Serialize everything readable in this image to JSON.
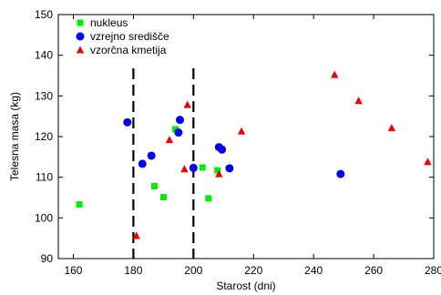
{
  "chart_data": {
    "type": "scatter",
    "title": "",
    "xlabel": "Starost (dni)",
    "ylabel": "Telesna masa (kg)",
    "xlim": [
      155,
      280
    ],
    "ylim": [
      90,
      150
    ],
    "x_ticks": [
      160,
      180,
      200,
      220,
      240,
      260,
      280
    ],
    "y_ticks": [
      90,
      100,
      110,
      120,
      130,
      140,
      150
    ],
    "grid": false,
    "legend_position": "top-left",
    "vertical_reference_lines": [
      180,
      200
    ],
    "series": [
      {
        "name": "nukleus",
        "marker": "square",
        "color": "#00ee00",
        "points": [
          [
            162,
            103.3
          ],
          [
            187,
            107.8
          ],
          [
            190,
            105.1
          ],
          [
            194,
            121.8
          ],
          [
            203,
            112.4
          ],
          [
            205,
            104.8
          ],
          [
            208,
            111.7
          ]
        ]
      },
      {
        "name": "vzrejno središče",
        "marker": "circle",
        "color": "#0000ee",
        "points": [
          [
            178,
            123.5
          ],
          [
            183,
            113.3
          ],
          [
            186,
            115.3
          ],
          [
            195,
            121.0
          ],
          [
            195.5,
            124.1
          ],
          [
            200,
            112.3
          ],
          [
            208.5,
            117.4
          ],
          [
            209.5,
            116.8
          ],
          [
            212,
            112.2
          ],
          [
            249,
            110.8
          ]
        ]
      },
      {
        "name": "vzorčna kmetija",
        "marker": "triangle",
        "color": "#ee0000",
        "points": [
          [
            181,
            95.6
          ],
          [
            192,
            119.2
          ],
          [
            197,
            112.0
          ],
          [
            198,
            127.8
          ],
          [
            208.5,
            110.8
          ],
          [
            216,
            121.3
          ],
          [
            247,
            135.2
          ],
          [
            255,
            128.8
          ],
          [
            266,
            122.1
          ],
          [
            278,
            113.8
          ]
        ]
      }
    ]
  }
}
